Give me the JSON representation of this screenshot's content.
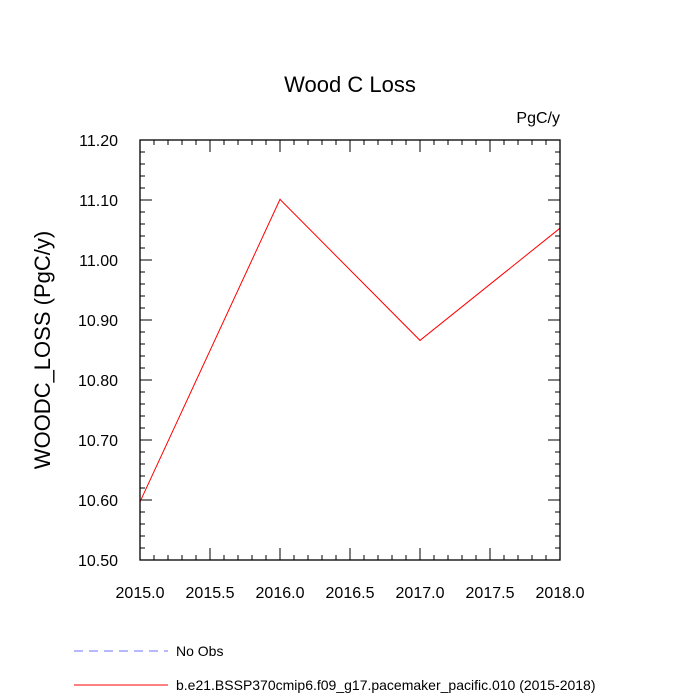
{
  "chart_data": {
    "type": "line",
    "title": "Wood C Loss",
    "units_label": "PgC/y",
    "ylabel": "WOODC_LOSS  (PgC/y)",
    "xlabel": "",
    "xlim": [
      2015.0,
      2018.0
    ],
    "ylim": [
      10.5,
      11.2
    ],
    "x_ticks": [
      "2015.0",
      "2015.5",
      "2016.0",
      "2016.5",
      "2017.0",
      "2017.5",
      "2018.0"
    ],
    "y_ticks": [
      "10.50",
      "10.60",
      "10.70",
      "10.80",
      "10.90",
      "11.00",
      "11.10",
      "11.20"
    ],
    "grid": false,
    "series": [
      {
        "name": "b.e21.BSSP370cmip6.f09_g17.pacemaker_pacific.010 (2015-2018)",
        "color": "#ff0000",
        "style": "solid",
        "x": [
          2015,
          2016,
          2017,
          2018
        ],
        "y": [
          10.597,
          11.101,
          10.866,
          11.053
        ]
      }
    ],
    "legend": [
      {
        "label": "No Obs",
        "color": "#7070ff",
        "style": "dashed"
      },
      {
        "label": "b.e21.BSSP370cmip6.f09_g17.pacemaker_pacific.010 (2015-2018)",
        "color": "#ff0000",
        "style": "solid"
      }
    ],
    "legend_position": "bottom-left"
  }
}
